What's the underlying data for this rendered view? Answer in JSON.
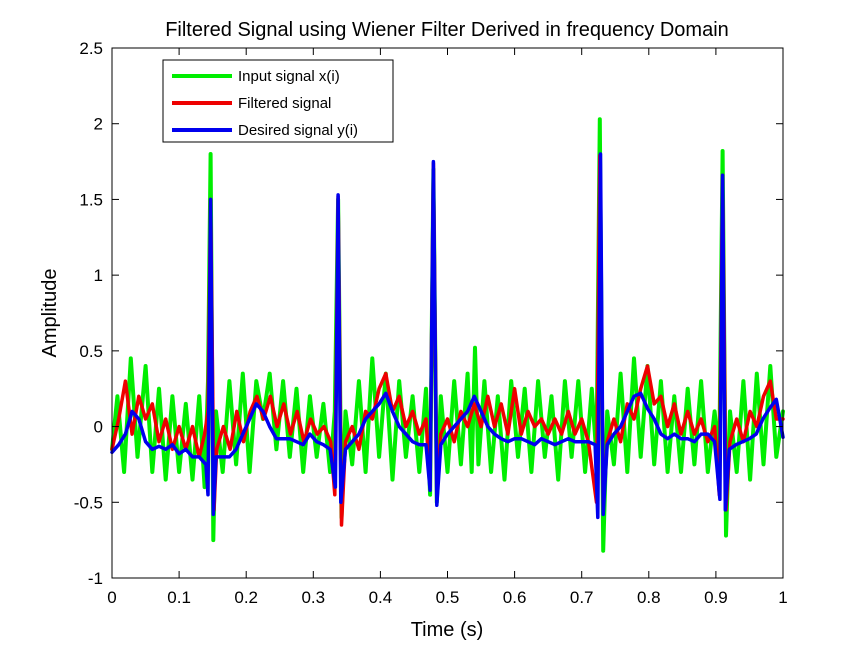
{
  "chart_data": {
    "type": "line",
    "title": "Filtered Signal using Wiener Filter Derived in frequency Domain",
    "xlabel": "Time (s)",
    "ylabel": "Amplitude",
    "xlim": [
      0,
      1
    ],
    "ylim": [
      -1,
      2.5
    ],
    "xticks": [
      "0",
      "0.1",
      "0.2",
      "0.3",
      "0.4",
      "0.5",
      "0.6",
      "0.7",
      "0.8",
      "0.9",
      "1"
    ],
    "yticks": [
      "-1",
      "-0.5",
      "0",
      "0.5",
      "1",
      "1.5",
      "2",
      "2.5"
    ],
    "grid": false,
    "legend_position": "top-left",
    "series": [
      {
        "name": "Input signal x(i)",
        "color": "#00ee00",
        "x": [
          0,
          0.008,
          0.018,
          0.028,
          0.038,
          0.05,
          0.06,
          0.07,
          0.08,
          0.09,
          0.1,
          0.11,
          0.12,
          0.13,
          0.138,
          0.143,
          0.147,
          0.151,
          0.155,
          0.165,
          0.175,
          0.185,
          0.195,
          0.205,
          0.215,
          0.225,
          0.235,
          0.245,
          0.255,
          0.265,
          0.275,
          0.285,
          0.295,
          0.305,
          0.315,
          0.325,
          0.332,
          0.337,
          0.342,
          0.348,
          0.358,
          0.368,
          0.378,
          0.388,
          0.398,
          0.408,
          0.418,
          0.428,
          0.438,
          0.448,
          0.458,
          0.468,
          0.474,
          0.479,
          0.484,
          0.49,
          0.5,
          0.51,
          0.52,
          0.53,
          0.536,
          0.541,
          0.546,
          0.555,
          0.565,
          0.575,
          0.585,
          0.595,
          0.605,
          0.615,
          0.625,
          0.635,
          0.645,
          0.655,
          0.665,
          0.675,
          0.685,
          0.695,
          0.705,
          0.715,
          0.722,
          0.727,
          0.732,
          0.738,
          0.748,
          0.758,
          0.768,
          0.778,
          0.788,
          0.798,
          0.808,
          0.818,
          0.828,
          0.838,
          0.848,
          0.858,
          0.868,
          0.878,
          0.888,
          0.898,
          0.905,
          0.91,
          0.915,
          0.921,
          0.931,
          0.941,
          0.951,
          0.961,
          0.971,
          0.981,
          0.99,
          1.0
        ],
        "values": [
          -0.15,
          0.2,
          -0.3,
          0.45,
          -0.2,
          0.4,
          -0.3,
          0.25,
          -0.35,
          0.2,
          -0.3,
          0.15,
          -0.35,
          0.2,
          -0.4,
          0.3,
          1.8,
          -0.75,
          0.1,
          -0.3,
          0.3,
          -0.25,
          0.35,
          -0.3,
          0.3,
          0.05,
          0.35,
          -0.15,
          0.3,
          -0.2,
          0.25,
          -0.3,
          0.2,
          -0.2,
          0.15,
          -0.3,
          0.1,
          1.5,
          -0.6,
          0.1,
          -0.25,
          0.3,
          -0.3,
          0.45,
          -0.2,
          0.35,
          -0.35,
          0.3,
          -0.2,
          0.2,
          -0.3,
          0.25,
          -0.45,
          1.7,
          -0.5,
          0.2,
          -0.3,
          0.3,
          -0.25,
          0.35,
          -0.3,
          0.52,
          -0.25,
          0.3,
          -0.3,
          0.2,
          -0.35,
          0.3,
          -0.2,
          0.25,
          -0.3,
          0.3,
          -0.2,
          0.2,
          -0.35,
          0.3,
          -0.2,
          0.3,
          -0.3,
          0.25,
          -0.2,
          2.03,
          -0.82,
          0.1,
          -0.25,
          0.35,
          -0.3,
          0.45,
          -0.2,
          0.4,
          -0.25,
          0.3,
          -0.3,
          0.2,
          -0.3,
          0.25,
          -0.25,
          0.3,
          -0.3,
          0.1,
          -0.2,
          1.82,
          -0.72,
          0.1,
          -0.3,
          0.3,
          -0.35,
          0.35,
          -0.25,
          0.4,
          -0.2,
          0.1
        ]
      },
      {
        "name": "Filtered signal",
        "color": "#ee0000",
        "x": [
          0,
          0.01,
          0.02,
          0.03,
          0.04,
          0.05,
          0.06,
          0.07,
          0.08,
          0.09,
          0.1,
          0.11,
          0.12,
          0.13,
          0.138,
          0.143,
          0.147,
          0.152,
          0.156,
          0.166,
          0.176,
          0.186,
          0.196,
          0.206,
          0.216,
          0.226,
          0.236,
          0.246,
          0.256,
          0.266,
          0.276,
          0.286,
          0.296,
          0.306,
          0.316,
          0.326,
          0.332,
          0.337,
          0.342,
          0.348,
          0.358,
          0.368,
          0.378,
          0.388,
          0.398,
          0.408,
          0.418,
          0.428,
          0.438,
          0.448,
          0.458,
          0.468,
          0.474,
          0.479,
          0.484,
          0.49,
          0.5,
          0.51,
          0.52,
          0.53,
          0.54,
          0.55,
          0.56,
          0.57,
          0.58,
          0.59,
          0.6,
          0.61,
          0.62,
          0.63,
          0.64,
          0.65,
          0.66,
          0.67,
          0.68,
          0.69,
          0.7,
          0.71,
          0.722,
          0.727,
          0.732,
          0.738,
          0.748,
          0.758,
          0.768,
          0.778,
          0.788,
          0.798,
          0.808,
          0.818,
          0.828,
          0.838,
          0.848,
          0.858,
          0.868,
          0.878,
          0.888,
          0.898,
          0.905,
          0.91,
          0.915,
          0.921,
          0.931,
          0.941,
          0.951,
          0.961,
          0.971,
          0.981,
          0.99,
          1.0
        ],
        "values": [
          -0.15,
          0.05,
          0.3,
          -0.05,
          0.2,
          0.05,
          0.15,
          -0.1,
          0.05,
          -0.15,
          0.0,
          -0.15,
          0.0,
          -0.2,
          -0.05,
          0.1,
          1.5,
          -0.55,
          -0.15,
          0.0,
          -0.15,
          0.1,
          -0.1,
          0.1,
          0.2,
          0.05,
          0.2,
          0.0,
          0.15,
          -0.05,
          0.1,
          -0.1,
          0.05,
          -0.05,
          0.0,
          -0.1,
          -0.45,
          1.52,
          -0.65,
          -0.1,
          0.0,
          -0.15,
          0.1,
          0.05,
          0.25,
          0.35,
          0.1,
          0.2,
          0.0,
          0.1,
          -0.05,
          0.05,
          -0.4,
          1.74,
          -0.45,
          -0.05,
          0.05,
          -0.1,
          0.1,
          0.0,
          0.15,
          0.0,
          0.2,
          0.0,
          0.15,
          -0.05,
          0.25,
          -0.05,
          0.1,
          0.0,
          0.05,
          -0.05,
          0.05,
          -0.05,
          0.1,
          -0.05,
          0.05,
          -0.1,
          -0.5,
          1.79,
          -0.55,
          -0.1,
          0.05,
          -0.1,
          0.15,
          0.05,
          0.25,
          0.4,
          0.15,
          0.2,
          0.0,
          0.15,
          -0.05,
          0.1,
          -0.05,
          0.05,
          -0.1,
          0.0,
          -0.45,
          1.66,
          -0.55,
          -0.1,
          0.05,
          -0.1,
          0.1,
          0.0,
          0.2,
          0.3,
          0.05,
          0.05
        ]
      },
      {
        "name": "Desired signal y(i)",
        "color": "#0000ee",
        "x": [
          0,
          0.01,
          0.02,
          0.03,
          0.04,
          0.05,
          0.06,
          0.07,
          0.08,
          0.09,
          0.1,
          0.11,
          0.12,
          0.13,
          0.14,
          0.143,
          0.147,
          0.151,
          0.155,
          0.165,
          0.175,
          0.185,
          0.195,
          0.205,
          0.215,
          0.225,
          0.235,
          0.245,
          0.255,
          0.265,
          0.275,
          0.285,
          0.295,
          0.305,
          0.315,
          0.325,
          0.333,
          0.337,
          0.341,
          0.348,
          0.358,
          0.368,
          0.378,
          0.388,
          0.398,
          0.408,
          0.418,
          0.428,
          0.438,
          0.448,
          0.458,
          0.468,
          0.474,
          0.479,
          0.484,
          0.49,
          0.5,
          0.51,
          0.52,
          0.53,
          0.54,
          0.55,
          0.56,
          0.57,
          0.58,
          0.59,
          0.6,
          0.61,
          0.62,
          0.63,
          0.64,
          0.65,
          0.66,
          0.67,
          0.68,
          0.69,
          0.7,
          0.71,
          0.72,
          0.724,
          0.728,
          0.732,
          0.738,
          0.748,
          0.758,
          0.768,
          0.778,
          0.788,
          0.798,
          0.808,
          0.818,
          0.828,
          0.838,
          0.848,
          0.858,
          0.868,
          0.878,
          0.888,
          0.898,
          0.906,
          0.91,
          0.914,
          0.92,
          0.93,
          0.94,
          0.95,
          0.96,
          0.97,
          0.98,
          0.99,
          1.0
        ],
        "values": [
          -0.17,
          -0.12,
          -0.05,
          0.1,
          0.05,
          -0.1,
          -0.15,
          -0.13,
          -0.15,
          -0.12,
          -0.18,
          -0.15,
          -0.2,
          -0.2,
          -0.25,
          -0.45,
          1.5,
          -0.58,
          -0.2,
          -0.2,
          -0.2,
          -0.15,
          -0.05,
          0.05,
          0.15,
          0.1,
          0.0,
          -0.08,
          -0.08,
          -0.08,
          -0.1,
          -0.12,
          -0.05,
          -0.1,
          -0.12,
          -0.15,
          -0.4,
          1.53,
          -0.5,
          -0.15,
          -0.1,
          -0.05,
          0.05,
          0.1,
          0.15,
          0.22,
          0.1,
          0.0,
          -0.05,
          -0.1,
          -0.12,
          -0.12,
          -0.42,
          1.75,
          -0.52,
          -0.12,
          -0.05,
          0.0,
          0.05,
          0.1,
          0.2,
          0.1,
          0.0,
          -0.05,
          -0.08,
          -0.1,
          -0.08,
          -0.08,
          -0.1,
          -0.12,
          -0.08,
          -0.1,
          -0.12,
          -0.1,
          -0.08,
          -0.1,
          -0.1,
          -0.1,
          -0.12,
          -0.6,
          1.8,
          -0.58,
          -0.12,
          -0.05,
          0.0,
          0.1,
          0.2,
          0.22,
          0.12,
          0.05,
          -0.05,
          -0.08,
          -0.05,
          -0.08,
          -0.08,
          -0.1,
          -0.05,
          -0.05,
          -0.1,
          -0.48,
          1.66,
          -0.55,
          -0.15,
          -0.12,
          -0.1,
          -0.08,
          -0.05,
          0.05,
          0.12,
          0.18,
          -0.07
        ]
      }
    ]
  }
}
